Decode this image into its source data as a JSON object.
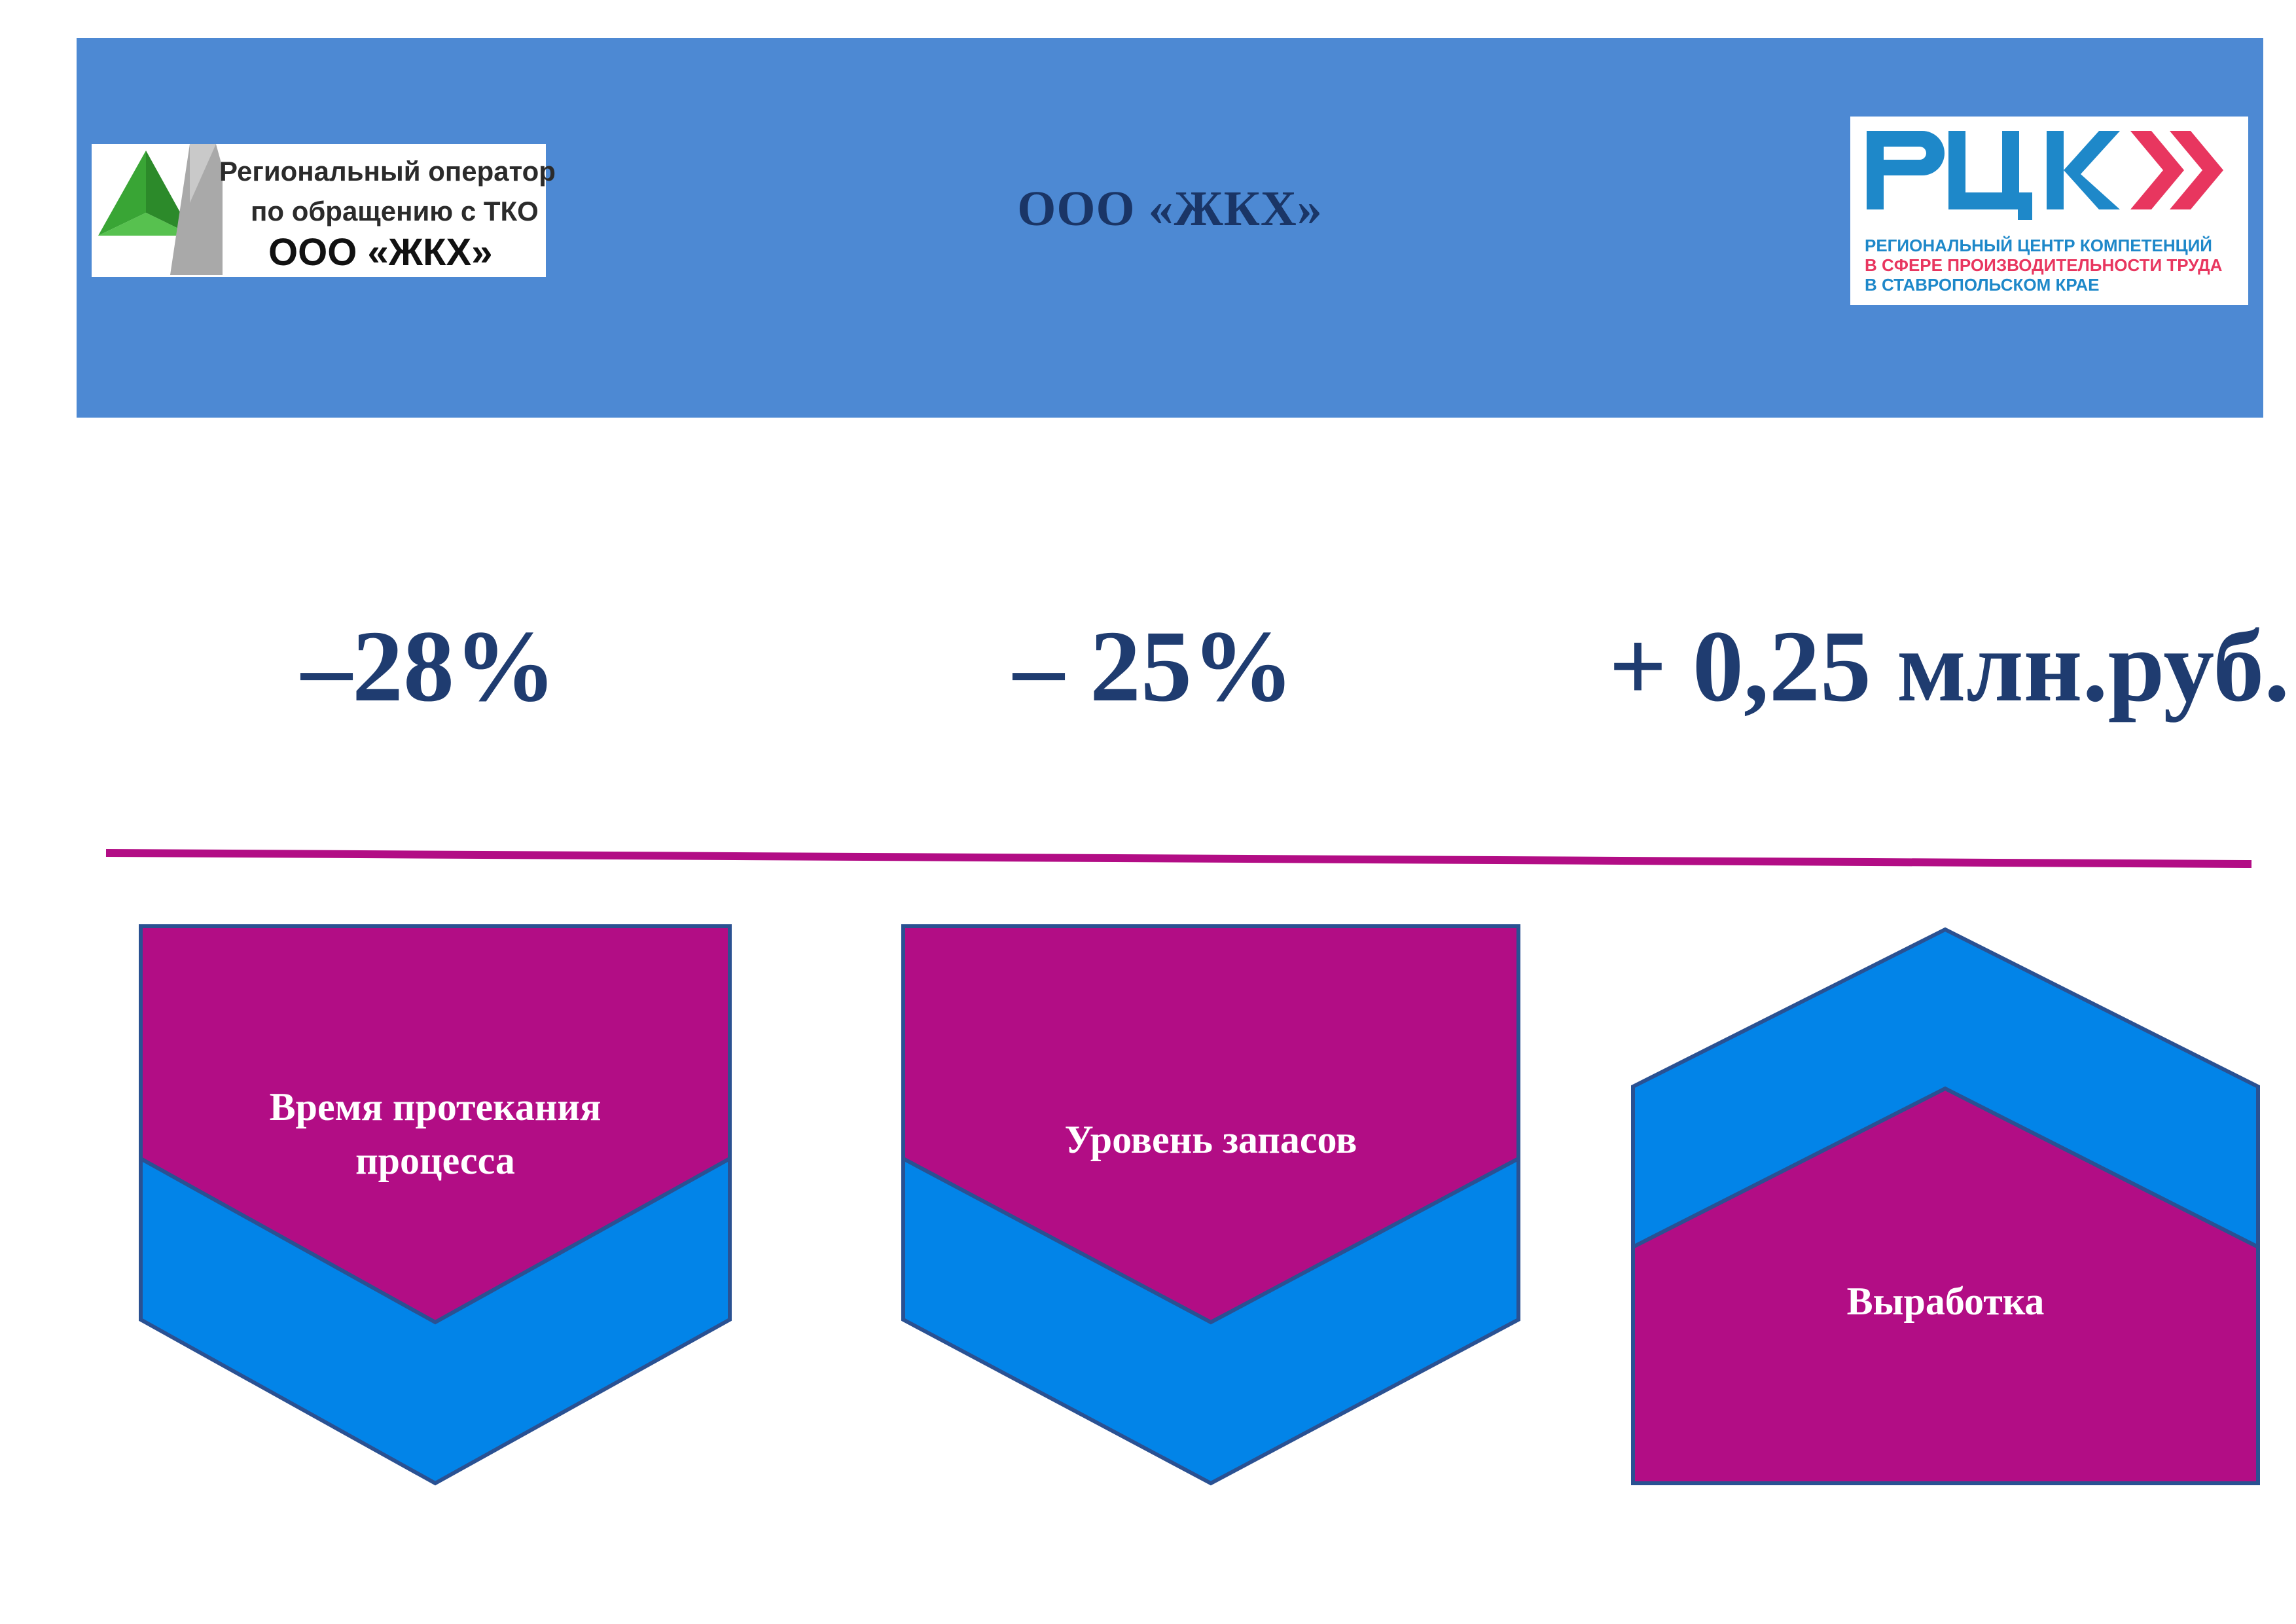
{
  "header": {
    "title": "ООО «ЖКХ»",
    "bg_color": "#4d89d3"
  },
  "logo_left": {
    "line1": "Региональный оператор",
    "line2": "по обращению с ТКО",
    "line3": "ООО «ЖКХ»"
  },
  "logo_right": {
    "mark": "РЦК",
    "line1": "РЕГИОНАЛЬНЫЙ ЦЕНТР КОМПЕТЕНЦИЙ",
    "line2": "В СФЕРЕ ПРОИЗВОДИТЕЛЬНОСТИ ТРУДА",
    "line3": "В СТАВРОПОЛЬСКОМ КРАЕ"
  },
  "metrics": [
    {
      "value": "–28%"
    },
    {
      "value": "– 25%"
    },
    {
      "value": "+ 0,25 млн.руб."
    }
  ],
  "indicators": [
    {
      "line1": "Время протекания",
      "line2": "процесса",
      "direction": "down"
    },
    {
      "line1": "Уровень запасов",
      "direction": "down"
    },
    {
      "line1": "Выработка",
      "direction": "up"
    }
  ],
  "colors": {
    "magenta": "#b20d85",
    "blue": "#0284e8",
    "text_dark": "#1f3c70",
    "divider": "#b20d85"
  }
}
